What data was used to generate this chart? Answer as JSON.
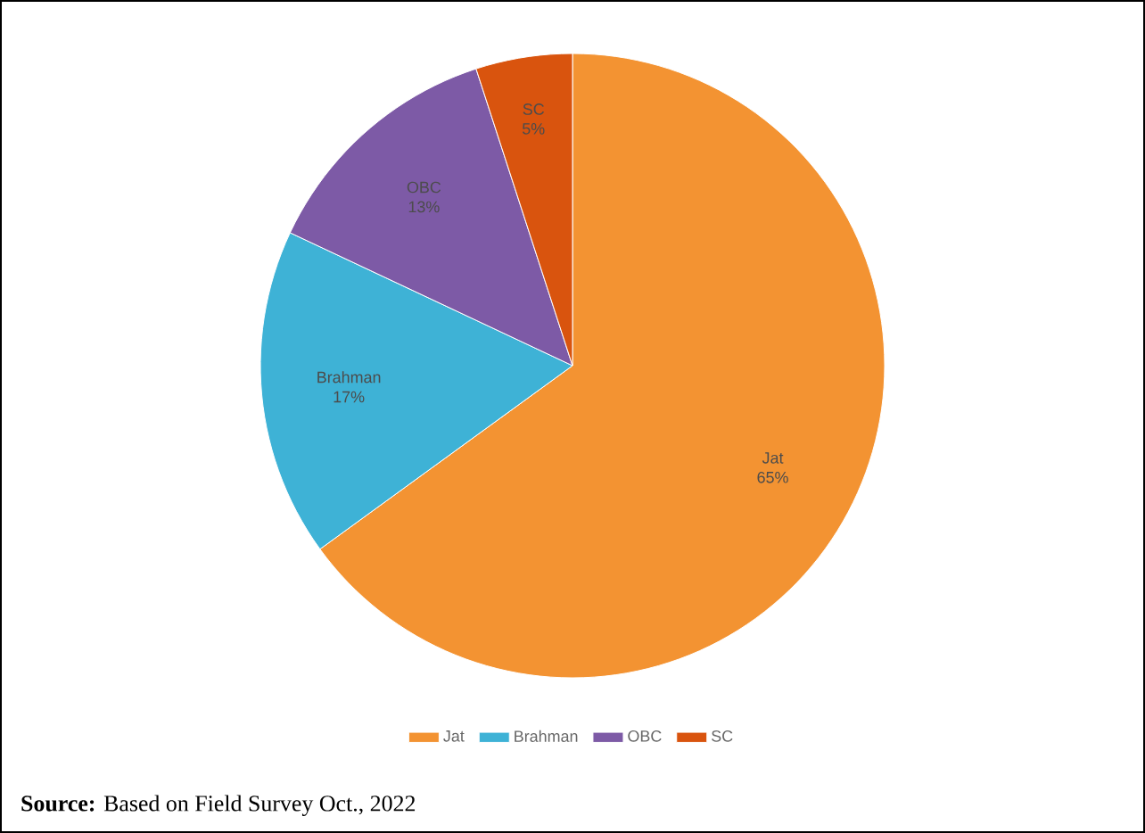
{
  "chart_data": {
    "type": "pie",
    "categories": [
      "Jat",
      "Brahman",
      "OBC",
      "SC"
    ],
    "values": [
      65,
      17,
      13,
      5
    ],
    "value_labels": [
      "65%",
      "17%",
      "13%",
      "5%"
    ],
    "colors": [
      "#f39332",
      "#3eb2d6",
      "#7d5aa6",
      "#d9540e"
    ],
    "legend": "bottom",
    "annotations": [
      "**Source:** Based on Field Survey Oct., 2022"
    ]
  }
}
